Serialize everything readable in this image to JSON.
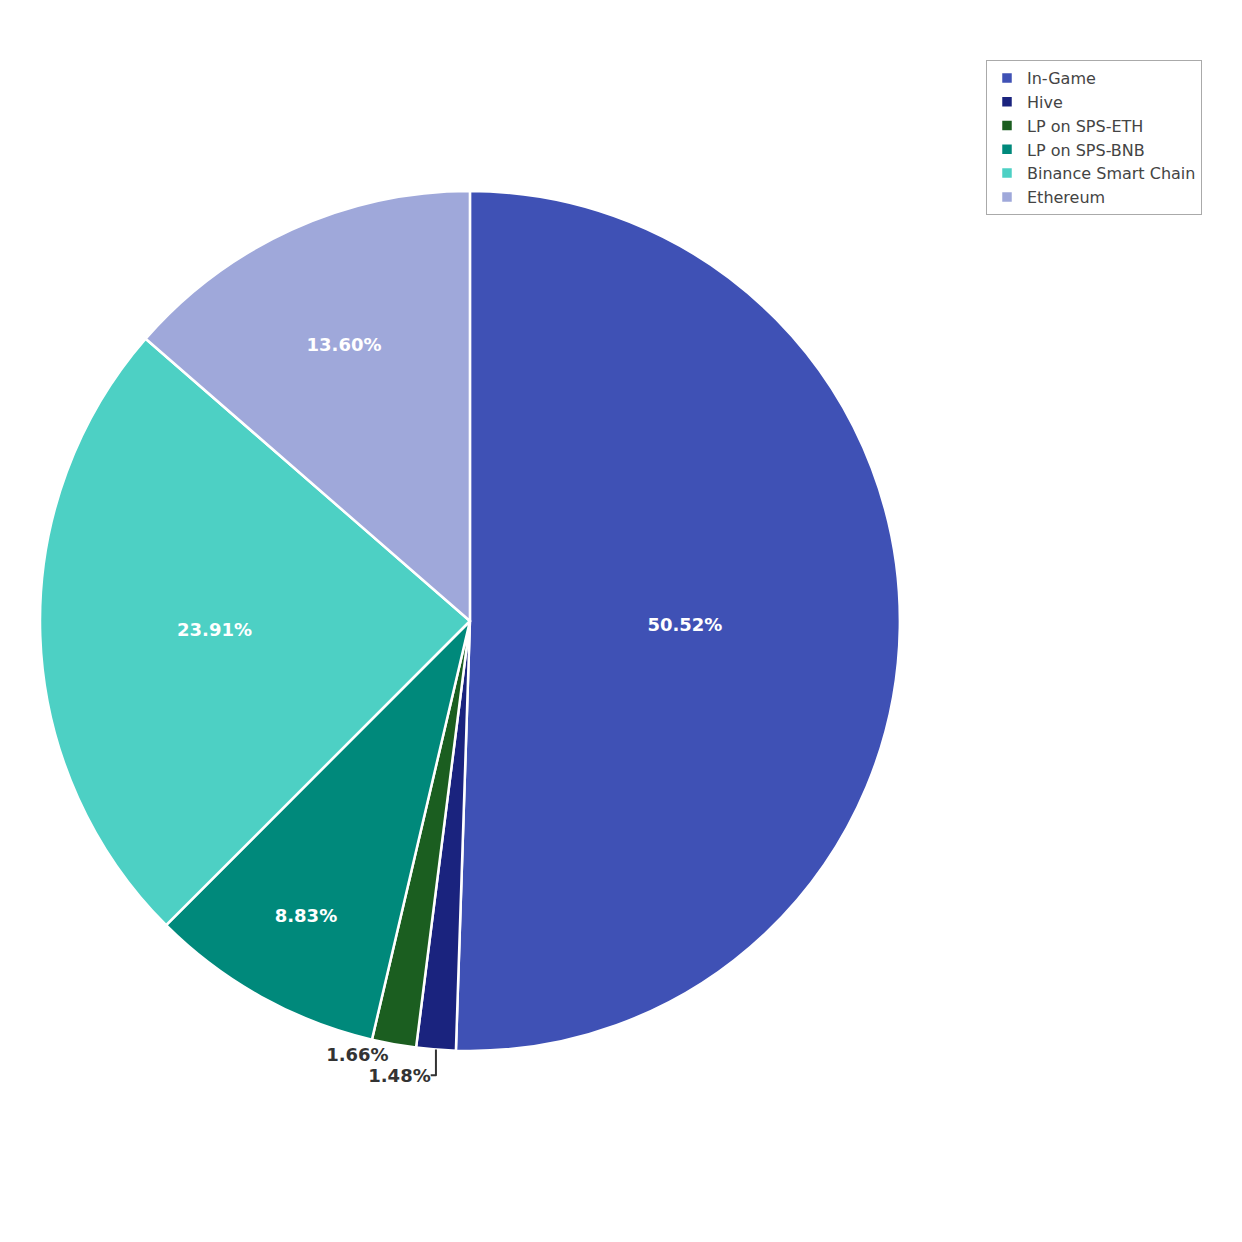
{
  "chart_data": {
    "type": "pie",
    "categories": [
      "In-Game",
      "Hive",
      "LP on SPS-ETH",
      "LP on SPS-BNB",
      "Binance Smart Chain",
      "Ethereum"
    ],
    "values": [
      50.52,
      1.48,
      1.66,
      8.83,
      23.91,
      13.6
    ],
    "value_labels": [
      "50.52%",
      "1.48%",
      "1.66%",
      "8.83%",
      "23.91%",
      "13.60%"
    ],
    "colors": [
      "#3f51b5",
      "#1a237e",
      "#1b5e20",
      "#00897b",
      "#4dd0c4",
      "#9fa8da"
    ],
    "data_labels": true,
    "legend": "upper right"
  }
}
